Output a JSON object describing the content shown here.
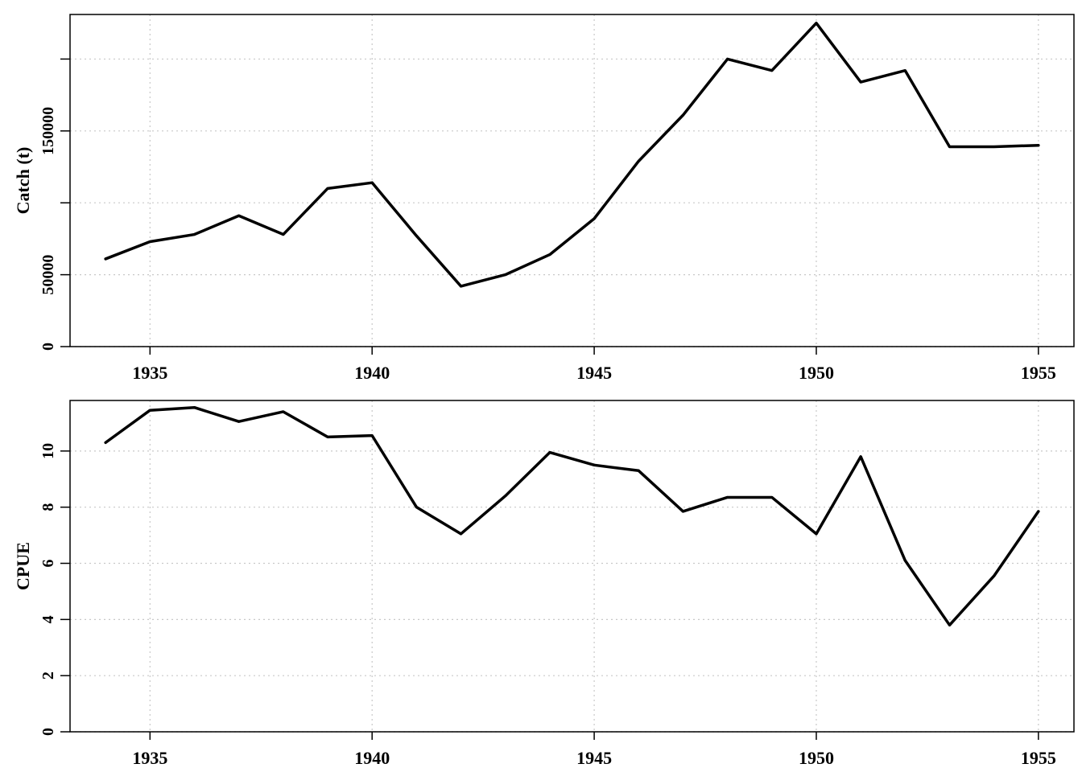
{
  "chart_data": [
    {
      "type": "line",
      "title": "",
      "xlabel": "",
      "ylabel": "Catch (t)",
      "xlim": [
        1933.2,
        1955.8
      ],
      "ylim": [
        0,
        231000
      ],
      "xticks": [
        1935,
        1940,
        1945,
        1950,
        1955
      ],
      "xtick_labels": [
        "1935",
        "1940",
        "1945",
        "1950",
        "1955"
      ],
      "yticks": [
        0,
        50000,
        100000,
        150000,
        200000
      ],
      "ytick_labels": [
        "0",
        "50000",
        "",
        "150000",
        ""
      ],
      "grid": true,
      "x": [
        1934,
        1935,
        1936,
        1937,
        1938,
        1939,
        1940,
        1941,
        1942,
        1943,
        1944,
        1945,
        1946,
        1947,
        1948,
        1949,
        1950,
        1951,
        1952,
        1953,
        1954,
        1955
      ],
      "series": [
        {
          "values": [
            61000,
            73000,
            78000,
            91000,
            78000,
            110000,
            114000,
            77000,
            42000,
            50000,
            64000,
            89000,
            129000,
            161000,
            200000,
            192000,
            225000,
            184000,
            192000,
            139000,
            139000,
            140000
          ]
        }
      ]
    },
    {
      "type": "line",
      "title": "",
      "xlabel": "",
      "ylabel": "CPUE",
      "xlim": [
        1933.2,
        1955.8
      ],
      "ylim": [
        0,
        11.8
      ],
      "xticks": [
        1935,
        1940,
        1945,
        1950,
        1955
      ],
      "xtick_labels": [
        "1935",
        "1940",
        "1945",
        "1950",
        "1955"
      ],
      "yticks": [
        0,
        2,
        4,
        6,
        8,
        10
      ],
      "ytick_labels": [
        "0",
        "2",
        "4",
        "6",
        "8",
        "10"
      ],
      "grid": true,
      "x": [
        1934,
        1935,
        1936,
        1937,
        1938,
        1939,
        1940,
        1941,
        1942,
        1943,
        1944,
        1945,
        1946,
        1947,
        1948,
        1949,
        1950,
        1951,
        1952,
        1953,
        1954,
        1955
      ],
      "series": [
        {
          "values": [
            10.3,
            11.45,
            11.55,
            11.05,
            11.4,
            10.5,
            10.55,
            8.0,
            7.05,
            8.4,
            9.95,
            9.5,
            9.3,
            7.85,
            8.35,
            8.35,
            7.05,
            9.8,
            6.1,
            3.8,
            5.55,
            7.85
          ]
        }
      ]
    }
  ]
}
